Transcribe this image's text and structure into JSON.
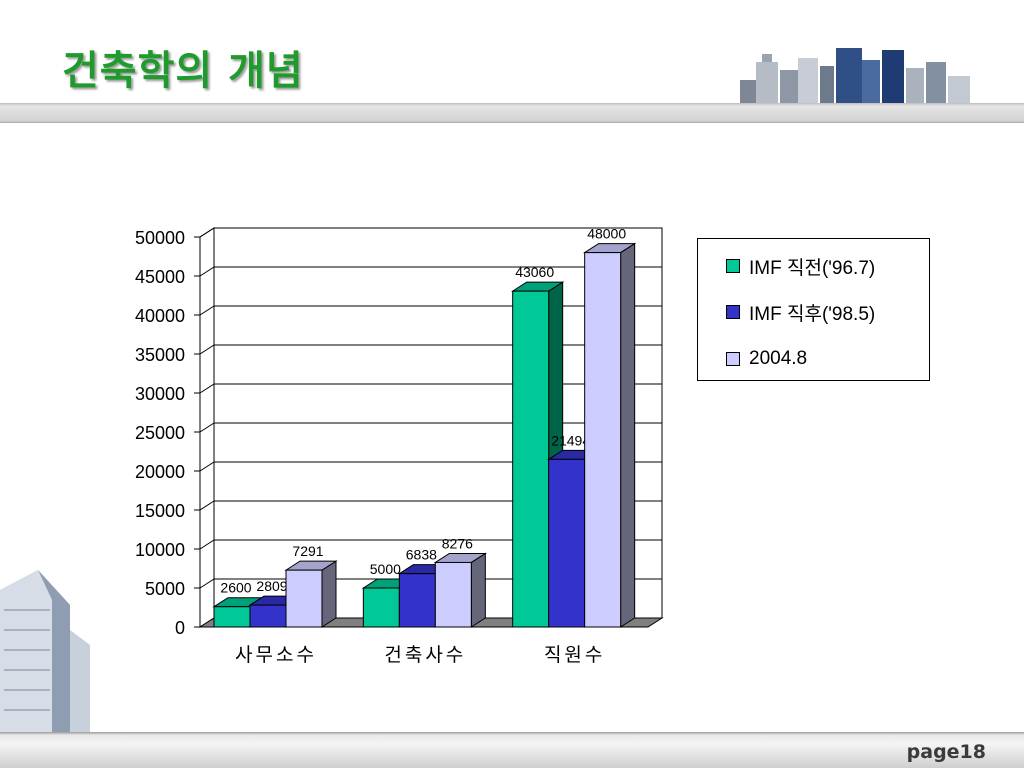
{
  "slide": {
    "title": "건축학의 개념",
    "page_label": "page18"
  },
  "colors": {
    "title": "#1f9a2c",
    "series": [
      "#00c896",
      "#3333cc",
      "#ccccff"
    ],
    "series_side": [
      "#006448",
      "#1a1a66",
      "#66667a"
    ],
    "series_top": [
      "#00a078",
      "#2929a3",
      "#a3a3cc"
    ]
  },
  "chart_data": {
    "type": "bar",
    "categories": [
      "사무소수",
      "건축사수",
      "직원수"
    ],
    "series": [
      {
        "name": "IMF 직전('96.7)",
        "values": [
          2600,
          5000,
          43060
        ]
      },
      {
        "name": "IMF 직후('98.5)",
        "values": [
          2809,
          6838,
          21494
        ]
      },
      {
        "name": "2004.8",
        "values": [
          7291,
          8276,
          48000
        ]
      }
    ],
    "ylim": [
      0,
      50000
    ],
    "yticks": [
      "0",
      "5000",
      "10000",
      "15000",
      "20000",
      "25000",
      "30000",
      "35000",
      "40000",
      "45000",
      "50000"
    ],
    "data_labels": true,
    "grid": true,
    "legend_position": "right",
    "style": "3d-clustered"
  }
}
